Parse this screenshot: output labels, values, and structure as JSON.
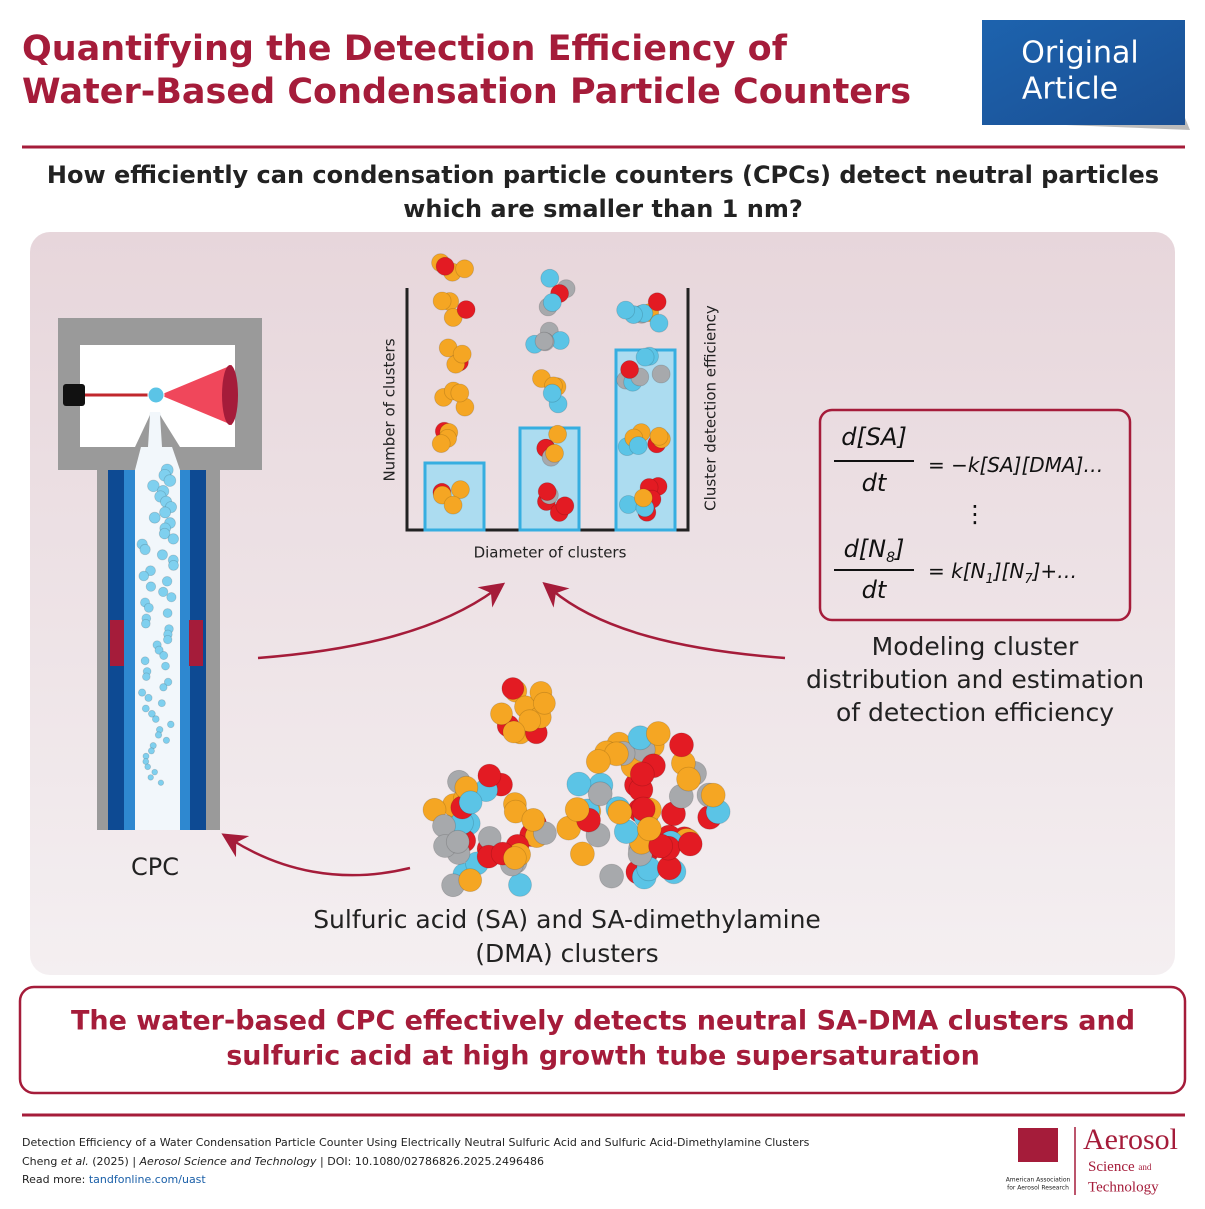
{
  "header": {
    "title_lines": [
      "Quantifying the Detection Efficiency of",
      "Water-Based Condensation Particle Counters"
    ],
    "badge_lines": [
      "Original",
      "Article"
    ]
  },
  "question_lines": [
    "How efficiently can condensation particle counters (CPCs) detect neutral particles",
    "which are smaller than 1 nm?"
  ],
  "diagram": {
    "y_label": "Number of clusters",
    "y2_label": "Cluster detection efficiency",
    "x_label": "Diameter of clusters",
    "equations": [
      {
        "num": [
          "d[SA]"
        ],
        "den": "dt",
        "rhs": [
          "= −k[SA][DMA]…"
        ]
      },
      {
        "num": [
          "d[N",
          "8",
          "]"
        ],
        "den": "dt",
        "rhs": [
          "= k[N",
          "1",
          "][N",
          "7",
          "]+…"
        ]
      }
    ],
    "vdots": "⋮",
    "model_lines": [
      "Modeling cluster",
      "distribution and estimation",
      "of detection efficiency"
    ],
    "cpc_label": "CPC",
    "clusters_lines": [
      "Sulfuric acid (SA) and SA-dimethylamine",
      "(DMA) clusters"
    ]
  },
  "conclusion_lines": [
    "The water-based CPC effectively detects neutral SA-DMA clusters and",
    "sulfuric acid at high growth tube supersaturation"
  ],
  "footer": {
    "citation": "Detection Efficiency of a Water Condensation Particle Counter Using Electrically Neutral Sulfuric Acid and Sulfuric Acid-Dimethylamine Clusters",
    "authors": [
      "Cheng ",
      "et al.",
      " (2025) | ",
      "Aerosol Science and Technology",
      " | DOI: 10.1080/02786826.2025.2496486"
    ],
    "read_more": [
      "Read more: ",
      "tandfonline.com/uast"
    ],
    "logo": {
      "aaar": "AAAR",
      "aaar_name_lines": [
        "American Association",
        "for Aerosol Research"
      ],
      "journal": [
        "Aerosol",
        "Science ",
        "and",
        "Technology"
      ]
    }
  }
}
